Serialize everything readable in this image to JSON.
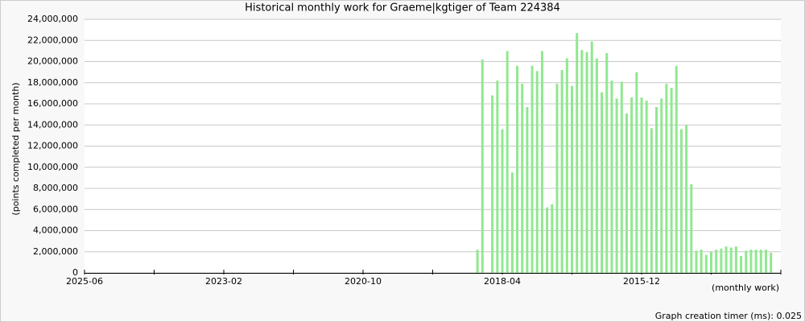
{
  "chart_data": {
    "type": "bar",
    "title": "Historical monthly work for Graeme|kgtiger of Team 224384",
    "y_label": "(points completed per month)",
    "x_label": "(monthly work)",
    "footer": "Graph creation timer (ms): 0.025",
    "color": "#90e890",
    "grid": true,
    "categories": [
      "2025-06",
      null,
      null,
      null,
      null,
      null,
      null,
      null,
      null,
      null,
      null,
      null,
      null,
      null,
      null,
      null,
      null,
      null,
      null,
      null,
      null,
      null,
      null,
      null,
      null,
      null,
      null,
      null,
      "2023-02",
      null,
      null,
      null,
      null,
      null,
      null,
      null,
      null,
      null,
      null,
      null,
      null,
      null,
      null,
      null,
      null,
      null,
      null,
      null,
      null,
      null,
      null,
      null,
      null,
      null,
      null,
      null,
      "2020-10",
      null,
      null,
      null,
      null,
      null,
      null,
      null,
      null,
      null,
      null,
      null,
      null,
      null,
      null,
      null,
      null,
      null,
      null,
      null,
      null,
      null,
      null,
      null,
      null,
      null,
      null,
      null,
      "2018-04",
      null,
      null,
      null,
      null,
      null,
      null,
      null,
      null,
      null,
      null,
      null,
      null,
      null,
      null,
      null,
      null,
      null,
      null,
      null,
      null,
      null,
      null,
      null,
      null,
      null,
      null,
      null,
      "2015-12",
      null,
      null,
      null,
      null,
      null,
      null,
      null,
      null,
      null,
      null,
      null,
      null,
      null,
      null,
      null,
      null,
      null,
      null,
      null,
      null,
      null,
      null,
      null,
      null,
      null,
      null,
      null,
      null
    ],
    "values": [
      null,
      null,
      null,
      null,
      null,
      null,
      null,
      null,
      null,
      null,
      null,
      null,
      null,
      null,
      null,
      null,
      null,
      null,
      null,
      null,
      null,
      null,
      null,
      null,
      null,
      null,
      null,
      null,
      null,
      null,
      null,
      null,
      null,
      null,
      null,
      null,
      null,
      null,
      null,
      null,
      null,
      null,
      null,
      null,
      null,
      null,
      null,
      null,
      null,
      null,
      null,
      null,
      null,
      null,
      null,
      null,
      null,
      null,
      null,
      null,
      null,
      null,
      null,
      null,
      null,
      null,
      null,
      null,
      null,
      null,
      null,
      null,
      null,
      null,
      null,
      null,
      null,
      null,
      null,
      2200000,
      20200000,
      null,
      16800000,
      18200000,
      13600000,
      21000000,
      9500000,
      19600000,
      17900000,
      15700000,
      19600000,
      19100000,
      21000000,
      6200000,
      6500000,
      17900000,
      19200000,
      20300000,
      17700000,
      22700000,
      21100000,
      20900000,
      21900000,
      20300000,
      17100000,
      20800000,
      18200000,
      16500000,
      18100000,
      15100000,
      16600000,
      19000000,
      16600000,
      16300000,
      13700000,
      15700000,
      16500000,
      17900000,
      17500000,
      19600000,
      13600000,
      14000000,
      8400000,
      2100000,
      2200000,
      1700000,
      2000000,
      2200000,
      2300000,
      2500000,
      2400000,
      2500000,
      1600000,
      2100000,
      2200000,
      2200000,
      2200000,
      2200000,
      1900000,
      null,
      null
    ],
    "ylim": [
      0,
      24000000
    ],
    "yticks": [
      0,
      {
        "value": 2000000,
        "label": "2,000,000"
      },
      {
        "value": 4000000,
        "label": "4,000,000"
      },
      {
        "value": 6000000,
        "label": "6,000,000"
      },
      {
        "value": 8000000,
        "label": "8,000,000"
      },
      {
        "value": 10000000,
        "label": "10,000,000"
      },
      {
        "value": 12000000,
        "label": "12,000,000"
      },
      {
        "value": 14000000,
        "label": "14,000,000"
      },
      {
        "value": 16000000,
        "label": "16,000,000"
      },
      {
        "value": 18000000,
        "label": "18,000,000"
      },
      {
        "value": 20000000,
        "label": "20,000,000"
      },
      {
        "value": 22000000,
        "label": "22,000,000"
      },
      {
        "value": 24000000,
        "label": "24,000,000"
      }
    ]
  }
}
